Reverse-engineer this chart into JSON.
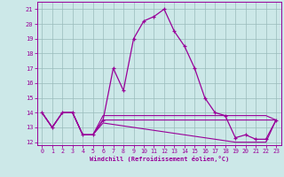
{
  "xlabel": "Windchill (Refroidissement éolien,°C)",
  "bg_color": "#cce8e8",
  "line_color": "#990099",
  "grid_color": "#99bbbb",
  "xlim": [
    -0.5,
    23.5
  ],
  "ylim": [
    11.8,
    21.5
  ],
  "yticks": [
    12,
    13,
    14,
    15,
    16,
    17,
    18,
    19,
    20,
    21
  ],
  "xticks": [
    0,
    1,
    2,
    3,
    4,
    5,
    6,
    7,
    8,
    9,
    10,
    11,
    12,
    13,
    14,
    15,
    16,
    17,
    18,
    19,
    20,
    21,
    22,
    23
  ],
  "temp_line": [
    14.0,
    13.0,
    14.0,
    14.0,
    12.5,
    12.5,
    13.5,
    17.0,
    15.5,
    19.0,
    20.2,
    20.5,
    21.0,
    19.5,
    18.5,
    17.0,
    15.0,
    14.0,
    13.8,
    12.3,
    12.5,
    12.2,
    12.2,
    13.5
  ],
  "wc_line1": [
    14.0,
    13.0,
    14.0,
    14.0,
    12.5,
    12.5,
    13.8,
    13.8,
    13.8,
    13.8,
    13.8,
    13.8,
    13.8,
    13.8,
    13.8,
    13.8,
    13.8,
    13.8,
    13.8,
    13.8,
    13.8,
    13.8,
    13.8,
    13.5
  ],
  "wc_line2": [
    14.0,
    13.0,
    14.0,
    14.0,
    12.5,
    12.5,
    13.5,
    13.5,
    13.5,
    13.5,
    13.5,
    13.5,
    13.5,
    13.5,
    13.5,
    13.5,
    13.5,
    13.5,
    13.5,
    13.5,
    13.5,
    13.5,
    13.5,
    13.5
  ],
  "wc_line3": [
    14.0,
    13.0,
    14.0,
    14.0,
    12.5,
    12.5,
    13.3,
    13.2,
    13.1,
    13.0,
    12.9,
    12.8,
    12.7,
    12.6,
    12.5,
    12.4,
    12.3,
    12.2,
    12.1,
    12.0,
    12.0,
    12.0,
    12.0,
    13.5
  ]
}
